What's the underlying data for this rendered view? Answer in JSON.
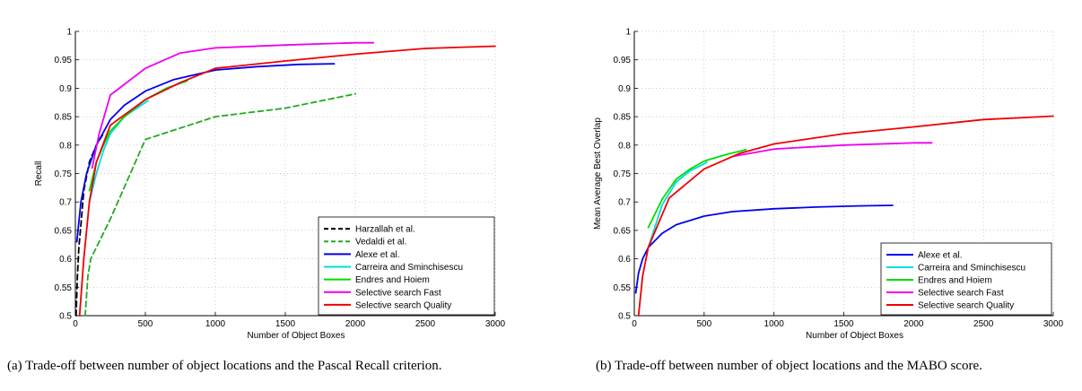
{
  "chart_data": [
    {
      "type": "line",
      "xlabel": "Number of Object Boxes",
      "ylabel": "Recall",
      "xlim": [
        0,
        3000
      ],
      "ylim": [
        0.5,
        1
      ],
      "xticks": [
        0,
        500,
        1000,
        1500,
        2000,
        2500,
        3000
      ],
      "yticks": [
        "0.5",
        "0.55",
        "0.6",
        "0.65",
        "0.7",
        "0.75",
        "0.8",
        "0.85",
        "0.9",
        "0.95",
        "1"
      ],
      "grid": "dotted",
      "legend_position": "bottom-right",
      "series": [
        {
          "name": "Harzallah et al.",
          "color": "#000000",
          "style": "dashed",
          "points": [
            [
              5,
              0.5
            ],
            [
              15,
              0.57
            ],
            [
              25,
              0.62
            ],
            [
              40,
              0.66
            ],
            [
              60,
              0.72
            ],
            [
              100,
              0.77
            ],
            [
              150,
              0.8
            ],
            [
              200,
              0.82
            ]
          ]
        },
        {
          "name": "Vedaldi et al.",
          "color": "#22aa22",
          "style": "dashed",
          "points": [
            [
              70,
              0.5
            ],
            [
              90,
              0.57
            ],
            [
              110,
              0.6
            ],
            [
              250,
              0.67
            ],
            [
              500,
              0.81
            ],
            [
              1000,
              0.85
            ],
            [
              1500,
              0.865
            ],
            [
              2000,
              0.89
            ]
          ]
        },
        {
          "name": "Alexe et al.",
          "color": "#0000ee",
          "style": "solid",
          "points": [
            [
              10,
              0.63
            ],
            [
              40,
              0.7
            ],
            [
              80,
              0.75
            ],
            [
              150,
              0.8
            ],
            [
              250,
              0.845
            ],
            [
              350,
              0.87
            ],
            [
              500,
              0.895
            ],
            [
              700,
              0.915
            ],
            [
              1000,
              0.932
            ],
            [
              1300,
              0.938
            ],
            [
              1600,
              0.942
            ],
            [
              1850,
              0.943
            ]
          ]
        },
        {
          "name": "Carreira and Sminchisescu",
          "color": "#00dddd",
          "style": "solid",
          "points": [
            [
              100,
              0.7
            ],
            [
              150,
              0.75
            ],
            [
              200,
              0.79
            ],
            [
              250,
              0.82
            ],
            [
              350,
              0.85
            ],
            [
              500,
              0.875
            ],
            [
              520,
              0.878
            ]
          ]
        },
        {
          "name": "Endres and Hoiem",
          "color": "#00dd00",
          "style": "solid",
          "points": [
            [
              100,
              0.72
            ],
            [
              150,
              0.77
            ],
            [
              200,
              0.8
            ],
            [
              250,
              0.825
            ],
            [
              350,
              0.85
            ],
            [
              500,
              0.88
            ],
            [
              650,
              0.9
            ],
            [
              800,
              0.913
            ]
          ]
        },
        {
          "name": "Selective search Fast",
          "color": "#ee00ee",
          "style": "solid",
          "points": [
            [
              120,
              0.76
            ],
            [
              170,
              0.82
            ],
            [
              250,
              0.888
            ],
            [
              500,
              0.935
            ],
            [
              750,
              0.962
            ],
            [
              1000,
              0.971
            ],
            [
              1500,
              0.976
            ],
            [
              2000,
              0.98
            ],
            [
              2130,
              0.98
            ]
          ]
        },
        {
          "name": "Selective search Quality",
          "color": "#ee0000",
          "style": "solid",
          "points": [
            [
              30,
              0.5
            ],
            [
              60,
              0.6
            ],
            [
              100,
              0.7
            ],
            [
              150,
              0.77
            ],
            [
              250,
              0.835
            ],
            [
              500,
              0.88
            ],
            [
              750,
              0.91
            ],
            [
              1000,
              0.935
            ],
            [
              1500,
              0.948
            ],
            [
              2000,
              0.96
            ],
            [
              2500,
              0.97
            ],
            [
              3000,
              0.974
            ]
          ]
        }
      ]
    },
    {
      "type": "line",
      "xlabel": "Number of Object Boxes",
      "ylabel": "Mean Average Best Overlap",
      "xlim": [
        0,
        3000
      ],
      "ylim": [
        0.5,
        1
      ],
      "xticks": [
        0,
        500,
        1000,
        1500,
        2000,
        2500,
        3000
      ],
      "yticks": [
        "0.5",
        "0.55",
        "0.6",
        "0.65",
        "0.7",
        "0.75",
        "0.8",
        "0.85",
        "0.9",
        "0.95",
        "1"
      ],
      "grid": "dotted",
      "legend_position": "bottom-right",
      "series": [
        {
          "name": "Alexe et al.",
          "color": "#0000ee",
          "style": "solid",
          "points": [
            [
              10,
              0.54
            ],
            [
              30,
              0.575
            ],
            [
              60,
              0.6
            ],
            [
              100,
              0.62
            ],
            [
              200,
              0.645
            ],
            [
              300,
              0.66
            ],
            [
              500,
              0.675
            ],
            [
              700,
              0.683
            ],
            [
              1000,
              0.688
            ],
            [
              1300,
              0.691
            ],
            [
              1600,
              0.693
            ],
            [
              1850,
              0.694
            ]
          ]
        },
        {
          "name": "Carreira and Sminchisescu",
          "color": "#00dddd",
          "style": "solid",
          "points": [
            [
              100,
              0.62
            ],
            [
              200,
              0.695
            ],
            [
              300,
              0.735
            ],
            [
              400,
              0.755
            ],
            [
              500,
              0.767
            ],
            [
              520,
              0.77
            ]
          ]
        },
        {
          "name": "Endres and Hoiem",
          "color": "#00dd00",
          "style": "solid",
          "points": [
            [
              100,
              0.655
            ],
            [
              200,
              0.705
            ],
            [
              300,
              0.74
            ],
            [
              400,
              0.758
            ],
            [
              500,
              0.772
            ],
            [
              650,
              0.783
            ],
            [
              800,
              0.792
            ]
          ]
        },
        {
          "name": "Selective search Fast",
          "color": "#ee00ee",
          "style": "solid",
          "points": [
            [
              700,
              0.78
            ],
            [
              1000,
              0.793
            ],
            [
              1500,
              0.8
            ],
            [
              2000,
              0.804
            ],
            [
              2130,
              0.804
            ]
          ]
        },
        {
          "name": "Selective search Quality",
          "color": "#ee0000",
          "style": "solid",
          "points": [
            [
              30,
              0.5
            ],
            [
              60,
              0.57
            ],
            [
              100,
              0.62
            ],
            [
              250,
              0.707
            ],
            [
              500,
              0.758
            ],
            [
              750,
              0.785
            ],
            [
              1000,
              0.802
            ],
            [
              1500,
              0.82
            ],
            [
              2000,
              0.832
            ],
            [
              2500,
              0.845
            ],
            [
              3000,
              0.851
            ]
          ]
        }
      ]
    }
  ],
  "captions": [
    "(a) Trade-off between number of object locations and the Pascal Recall criterion.",
    "(b) Trade-off between number of object locations and the MABO score."
  ]
}
